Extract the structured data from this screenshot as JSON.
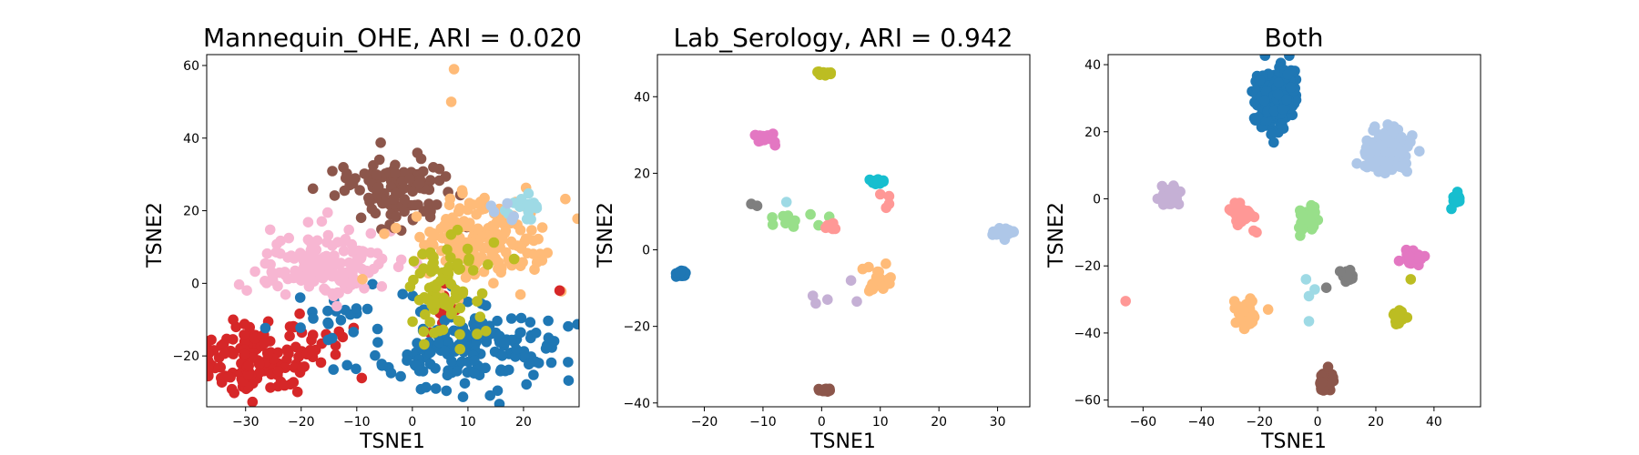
{
  "chart_data": [
    {
      "type": "scatter",
      "title": "Mannequin_OHE, ARI = 0.020",
      "xlabel": "TSNE1",
      "ylabel": "TSNE2",
      "xlim": [
        -37,
        30
      ],
      "ylim": [
        -34,
        63
      ],
      "xticks": [
        -30,
        -20,
        -10,
        0,
        10,
        20
      ],
      "yticks": [
        -20,
        0,
        20,
        40,
        60
      ],
      "grid": false,
      "clusters": [
        {
          "color": "#d62728",
          "cx": -27,
          "cy": -20,
          "sx": 6.5,
          "sy": 4.5,
          "n": 150
        },
        {
          "color": "#d62728",
          "cx": 5,
          "cy": -8,
          "sx": 2,
          "sy": 5,
          "n": 10
        },
        {
          "color": "#1f77b4",
          "cx": 10,
          "cy": -18,
          "sx": 8,
          "sy": 5.5,
          "n": 170
        },
        {
          "color": "#1f77b4",
          "cx": -12,
          "cy": -10,
          "sx": 5,
          "sy": 4,
          "n": 20
        },
        {
          "color": "#f7b6d2",
          "cx": -15,
          "cy": 5,
          "sx": 6.5,
          "sy": 5,
          "n": 150
        },
        {
          "color": "#8c564b",
          "cx": -3,
          "cy": 25,
          "sx": 5,
          "sy": 5,
          "n": 110
        },
        {
          "color": "#ffbb78",
          "cx": 12,
          "cy": 12,
          "sx": 6.5,
          "sy": 6,
          "n": 170
        },
        {
          "color": "#bcbd22",
          "cx": 6,
          "cy": -2,
          "sx": 3.5,
          "sy": 7,
          "n": 80
        },
        {
          "color": "#9edae5",
          "cx": 20,
          "cy": 21,
          "sx": 2.5,
          "sy": 2,
          "n": 15
        },
        {
          "color": "#aec7e8",
          "cx": 17,
          "cy": 18,
          "sx": 2,
          "sy": 2,
          "n": 5
        }
      ],
      "points": [
        {
          "x": 7.5,
          "y": 59,
          "color": "#ffbb78"
        },
        {
          "x": 7,
          "y": 50,
          "color": "#ffbb78"
        },
        {
          "x": 26.5,
          "y": -2,
          "color": "#d62728"
        },
        {
          "x": 24.5,
          "y": -15,
          "color": "#1f77b4"
        }
      ]
    },
    {
      "type": "scatter",
      "title": "Lab_Serology, ARI = 0.942",
      "xlabel": "TSNE1",
      "ylabel": "TSNE2",
      "xlim": [
        -28,
        35.5
      ],
      "ylim": [
        -41,
        51
      ],
      "xticks": [
        -20,
        -10,
        0,
        10,
        20,
        30
      ],
      "yticks": [
        -40,
        -20,
        0,
        20,
        40
      ],
      "grid": false,
      "clusters": [
        {
          "color": "#1f77b4",
          "cx": -24,
          "cy": -6.5,
          "sx": 0.4,
          "sy": 0.6,
          "n": 30
        },
        {
          "color": "#bcbd22",
          "cx": 0.3,
          "cy": 46.2,
          "sx": 0.5,
          "sy": 0.3,
          "n": 15
        },
        {
          "color": "#8c564b",
          "cx": 0.6,
          "cy": -36.5,
          "sx": 0.5,
          "sy": 0.3,
          "n": 15
        },
        {
          "color": "#e377c2",
          "cx": -10,
          "cy": 29.3,
          "sx": 1.2,
          "sy": 0.6,
          "n": 20
        },
        {
          "color": "#17becf",
          "cx": 9.5,
          "cy": 18,
          "sx": 0.6,
          "sy": 0.4,
          "n": 15
        },
        {
          "color": "#98df8a",
          "cx": -4,
          "cy": 7.5,
          "sx": 3.5,
          "sy": 1.2,
          "n": 15
        },
        {
          "color": "#ff9896",
          "cx": 1.5,
          "cy": 6,
          "sx": 0.5,
          "sy": 0.4,
          "n": 8
        },
        {
          "color": "#ffbb78",
          "cx": 9.5,
          "cy": -8.5,
          "sx": 1.2,
          "sy": 1.5,
          "n": 20
        },
        {
          "color": "#aec7e8",
          "cx": 31,
          "cy": 4.5,
          "sx": 1.3,
          "sy": 0.7,
          "n": 25
        }
      ],
      "points": [
        {
          "x": -12,
          "y": 12,
          "color": "#7f7f7f"
        },
        {
          "x": -11,
          "y": 11.5,
          "color": "#7f7f7f"
        },
        {
          "x": -6,
          "y": 12.5,
          "color": "#9edae5"
        },
        {
          "x": 10,
          "y": 14.5,
          "color": "#ff9896"
        },
        {
          "x": 11.5,
          "y": 14,
          "color": "#ff9896"
        },
        {
          "x": 11,
          "y": 11,
          "color": "#ff9896"
        },
        {
          "x": 11.5,
          "y": 12,
          "color": "#ff9896"
        },
        {
          "x": 7,
          "y": -5,
          "color": "#ffbb78"
        },
        {
          "x": 8,
          "y": -4.5,
          "color": "#ffbb78"
        },
        {
          "x": -1.5,
          "y": -12,
          "color": "#c5b0d5"
        },
        {
          "x": -1,
          "y": -14,
          "color": "#c5b0d5"
        },
        {
          "x": 1,
          "y": -13,
          "color": "#c5b0d5"
        },
        {
          "x": 5,
          "y": -8,
          "color": "#c5b0d5"
        },
        {
          "x": 6,
          "y": -13.5,
          "color": "#c5b0d5"
        }
      ]
    },
    {
      "type": "scatter",
      "title": "Both",
      "xlabel": "TSNE1",
      "ylabel": "TSNE2",
      "xlim": [
        -72,
        56
      ],
      "ylim": [
        -62,
        43
      ],
      "xticks": [
        -60,
        -40,
        -20,
        0,
        20,
        40
      ],
      "yticks": [
        -60,
        -40,
        -20,
        0,
        20,
        40
      ],
      "grid": false,
      "clusters": [
        {
          "color": "#1f77b4",
          "cx": -14,
          "cy": 30,
          "sx": 3.2,
          "sy": 4.2,
          "n": 260
        },
        {
          "color": "#aec7e8",
          "cx": 24,
          "cy": 14,
          "sx": 3.5,
          "sy": 3,
          "n": 220
        },
        {
          "color": "#c5b0d5",
          "cx": -51,
          "cy": 0.5,
          "sx": 1.5,
          "sy": 1.2,
          "n": 50
        },
        {
          "color": "#ff9896",
          "cx": -26,
          "cy": -4.5,
          "sx": 1.6,
          "sy": 1.3,
          "n": 50
        },
        {
          "color": "#98df8a",
          "cx": -3.5,
          "cy": -6,
          "sx": 1.5,
          "sy": 1.7,
          "n": 50
        },
        {
          "color": "#17becf",
          "cx": 48,
          "cy": 0,
          "sx": 0.8,
          "sy": 0.8,
          "n": 20
        },
        {
          "color": "#e377c2",
          "cx": 33,
          "cy": -17.5,
          "sx": 1.5,
          "sy": 1.5,
          "n": 50
        },
        {
          "color": "#7f7f7f",
          "cx": 10,
          "cy": -23,
          "sx": 1.5,
          "sy": 1.2,
          "n": 20
        },
        {
          "color": "#ffbb78",
          "cx": -25,
          "cy": -34.5,
          "sx": 1.8,
          "sy": 1.6,
          "n": 60
        },
        {
          "color": "#bcbd22",
          "cx": 28,
          "cy": -35,
          "sx": 1.2,
          "sy": 1,
          "n": 25
        },
        {
          "color": "#8c564b",
          "cx": 3,
          "cy": -54.5,
          "sx": 1.3,
          "sy": 1.8,
          "n": 40
        }
      ],
      "points": [
        {
          "x": -66,
          "y": -30.5,
          "color": "#ff9896"
        },
        {
          "x": -22,
          "y": -9.5,
          "color": "#ff9896"
        },
        {
          "x": -21,
          "y": -10,
          "color": "#ff9896"
        },
        {
          "x": -6,
          "y": -11,
          "color": "#98df8a"
        },
        {
          "x": -4,
          "y": -24,
          "color": "#9edae5"
        },
        {
          "x": -3,
          "y": -29,
          "color": "#9edae5"
        },
        {
          "x": -1,
          "y": -27,
          "color": "#9edae5"
        },
        {
          "x": -3,
          "y": -36.5,
          "color": "#9edae5"
        },
        {
          "x": 3,
          "y": -26.5,
          "color": "#7f7f7f"
        },
        {
          "x": 32,
          "y": -24,
          "color": "#bcbd22"
        },
        {
          "x": 28,
          "y": -18.5,
          "color": "#e377c2"
        },
        {
          "x": 46,
          "y": -3,
          "color": "#17becf"
        },
        {
          "x": -17,
          "y": -33,
          "color": "#ffbb78"
        }
      ]
    }
  ]
}
